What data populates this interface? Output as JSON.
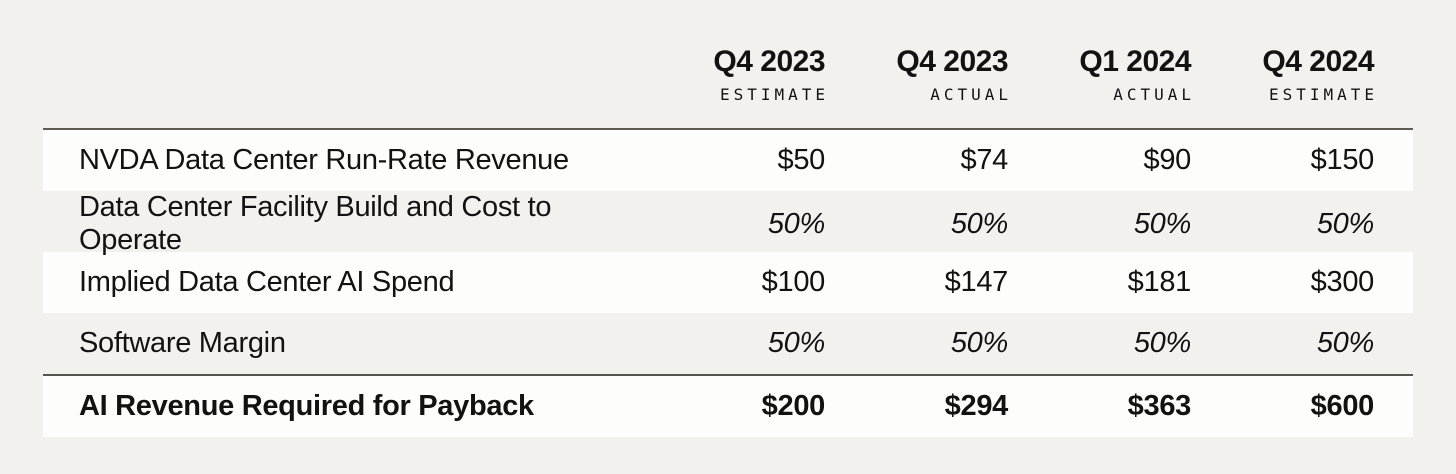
{
  "chart_data": {
    "type": "table",
    "columns": [
      {
        "period": "Q4 2023",
        "qualifier": "ESTIMATE"
      },
      {
        "period": "Q4 2023",
        "qualifier": "ACTUAL"
      },
      {
        "period": "Q1 2024",
        "qualifier": "ACTUAL"
      },
      {
        "period": "Q4 2024",
        "qualifier": "ESTIMATE"
      }
    ],
    "rows": [
      {
        "label": "NVDA Data Center Run-Rate Revenue",
        "values": [
          "$50",
          "$74",
          "$90",
          "$150"
        ]
      },
      {
        "label": "Data Center Facility Build and Cost to Operate",
        "values": [
          "50%",
          "50%",
          "50%",
          "50%"
        ]
      },
      {
        "label": "Implied Data Center AI Spend",
        "values": [
          "$100",
          "$147",
          "$181",
          "$300"
        ]
      },
      {
        "label": "Software Margin",
        "values": [
          "50%",
          "50%",
          "50%",
          "50%"
        ]
      },
      {
        "label": "AI Revenue Required for Payback",
        "values": [
          "$200",
          "$294",
          "$363",
          "$600"
        ]
      }
    ],
    "layout": {
      "banded_row_color": "#fdfdfc",
      "page_background": "#f2f1ee",
      "rule_color": "#55554f",
      "value_alignment": "right"
    }
  }
}
